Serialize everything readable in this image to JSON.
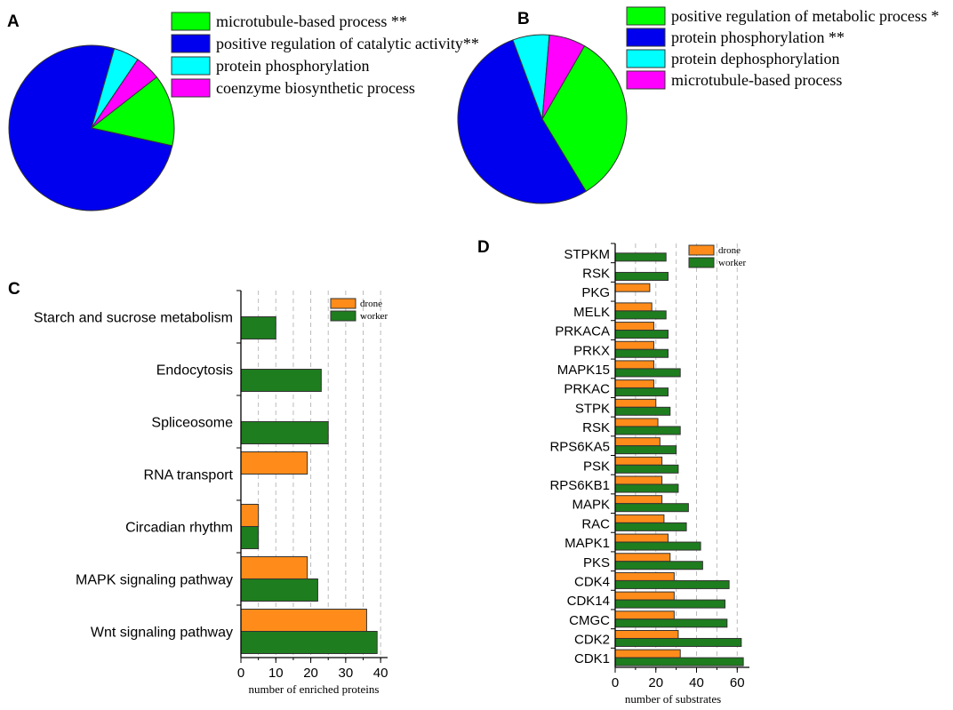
{
  "colors": {
    "drone": "#ff8c1a",
    "worker": "#1e7d1e",
    "green": "#00ff00",
    "blue": "#0000ee",
    "cyan": "#00ffff",
    "magenta": "#ff00ff"
  },
  "chart_data": [
    {
      "id": "A",
      "label": "A",
      "type": "pie",
      "slices": [
        {
          "name": "microtubule-based process **",
          "value": 14,
          "color": "#00ff00"
        },
        {
          "name": "positive regulation of catalytic activity**",
          "value": 76,
          "color": "#0000ee"
        },
        {
          "name": "protein phosphorylation",
          "value": 5,
          "color": "#00ffff"
        },
        {
          "name": "coenzyme biosynthetic process",
          "value": 5,
          "color": "#ff00ff"
        }
      ]
    },
    {
      "id": "B",
      "label": "B",
      "type": "pie",
      "slices": [
        {
          "name": "positive regulation of metabolic process *",
          "value": 33,
          "color": "#00ff00"
        },
        {
          "name": "protein phosphorylation **",
          "value": 53,
          "color": "#0000ee"
        },
        {
          "name": "protein dephosphorylation",
          "value": 7,
          "color": "#00ffff"
        },
        {
          "name": "microtubule-based process",
          "value": 7,
          "color": "#ff00ff"
        }
      ]
    },
    {
      "id": "C",
      "label": "C",
      "type": "bar",
      "orientation": "horizontal",
      "categories": [
        "Starch and sucrose metabolism",
        "Endocytosis",
        "Spliceosome",
        "RNA transport",
        "Circadian rhythm",
        "MAPK signaling pathway",
        "Wnt signaling pathway"
      ],
      "series": [
        {
          "name": "drone",
          "values": [
            0,
            0,
            0,
            19,
            5,
            19,
            36
          ]
        },
        {
          "name": "worker",
          "values": [
            10,
            23,
            25,
            0,
            5,
            22,
            39
          ]
        }
      ],
      "xlabel": "number of enriched proteins",
      "xlim": [
        0,
        42
      ],
      "xticks": [
        0,
        10,
        20,
        30,
        40
      ],
      "legend": "top-right"
    },
    {
      "id": "D",
      "label": "D",
      "type": "bar",
      "orientation": "horizontal",
      "categories": [
        "STPKM",
        "RSK",
        "PKG",
        "MELK",
        "PRKACA",
        "PRKX",
        "MAPK15",
        "PRKAC",
        "STPK",
        "RSK",
        "RPS6KA5",
        "PSK",
        "RPS6KB1",
        "MAPK",
        "RAC",
        "MAPK1",
        "PKS",
        "CDK4",
        "CDK14",
        "CMGC",
        "CDK2",
        "CDK1"
      ],
      "series": [
        {
          "name": "drone",
          "values": [
            0,
            0,
            17,
            18,
            19,
            19,
            19,
            19,
            20,
            21,
            22,
            23,
            23,
            23,
            24,
            26,
            27,
            29,
            29,
            29,
            31,
            32
          ]
        },
        {
          "name": "worker",
          "values": [
            25,
            26,
            0,
            25,
            26,
            26,
            32,
            26,
            27,
            32,
            30,
            31,
            31,
            36,
            35,
            42,
            43,
            56,
            54,
            55,
            62,
            63
          ]
        }
      ],
      "xlabel": "number of substrates",
      "xlim": [
        0,
        66
      ],
      "xticks": [
        0,
        20,
        40,
        60
      ],
      "legend": "top-right"
    }
  ]
}
